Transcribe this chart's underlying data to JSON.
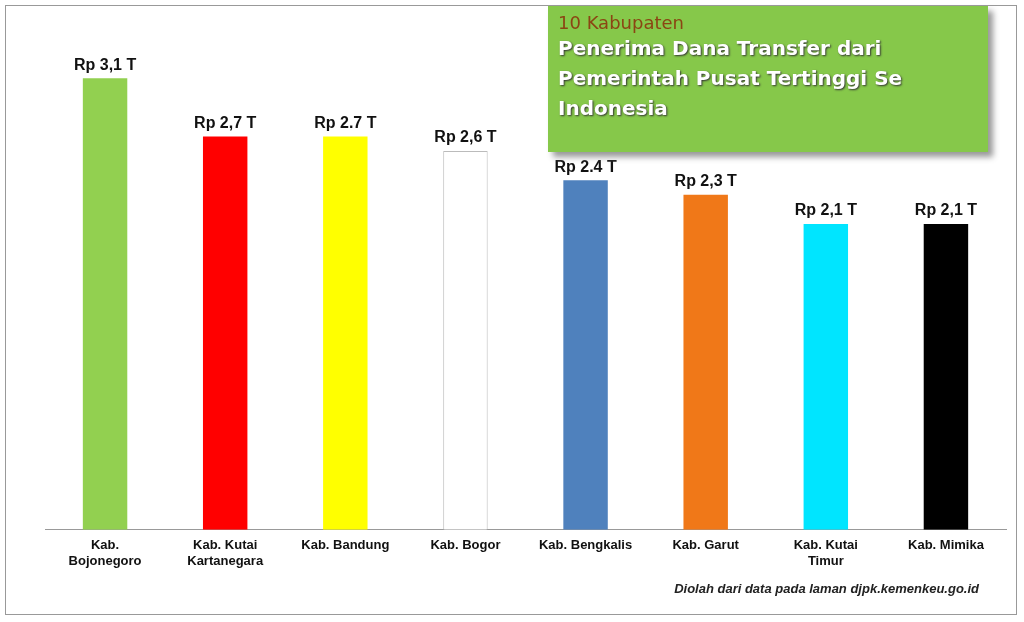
{
  "chart_data": {
    "type": "bar",
    "subtitle": "10 Kabupaten",
    "title": "Penerima Dana Transfer dari Pemerintah Pusat Tertinggi Se Indonesia",
    "categories": [
      "Kab. Bojonegoro",
      "Kab. Kutai Kartanegara",
      "Kab. Bandung",
      "Kab. Bogor",
      "Kab. Bengkalis",
      "Kab. Garut",
      "Kab. Kutai Timur",
      "Kab. Mimika"
    ],
    "values": [
      3.1,
      2.7,
      2.7,
      2.6,
      2.4,
      2.3,
      2.1,
      2.1
    ],
    "value_labels": [
      "Rp 3,1 T",
      "Rp 2,7 T",
      "Rp 2.7 T",
      "Rp 2,6 T",
      "Rp 2.4 T",
      "Rp 2,3 T",
      "Rp 2,1 T",
      "Rp 2,1 T"
    ],
    "colors": [
      "#92d050",
      "#ff0000",
      "#ffff00",
      "#ffffff",
      "#4f81bd",
      "#f07818",
      "#00e5ff",
      "#000000"
    ],
    "grid": false,
    "legend": false,
    "annotations": [
      "Diolah dari data pada laman djpk.kemenkeu.go.id"
    ]
  }
}
